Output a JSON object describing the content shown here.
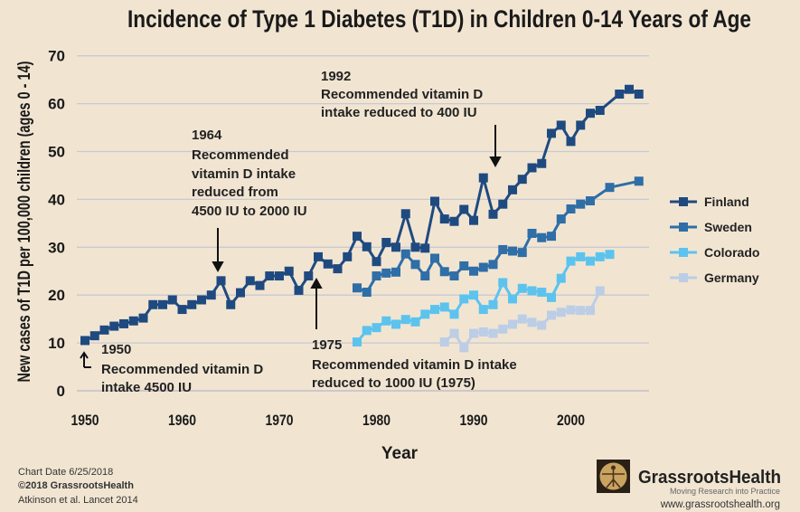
{
  "chart_data": {
    "type": "line",
    "title": "Incidence of Type 1 Diabetes (T1D) in Children 0-14 Years of Age",
    "xlabel": "Year",
    "ylabel": "New cases of T1D per 100,000 children (ages 0 - 14)",
    "xlim": [
      1949,
      2008
    ],
    "ylim": [
      0,
      70
    ],
    "x_ticks": [
      "1950",
      "1960",
      "1970",
      "1980",
      "1990",
      "2000"
    ],
    "y_ticks": [
      "0",
      "10",
      "20",
      "30",
      "40",
      "50",
      "60",
      "70"
    ],
    "grid": "horizontal",
    "legend_position": "right",
    "series": [
      {
        "name": "Finland",
        "color": "#1f4a80",
        "x": [
          1950,
          1951,
          1952,
          1953,
          1954,
          1955,
          1956,
          1957,
          1958,
          1959,
          1960,
          1961,
          1962,
          1963,
          1964,
          1965,
          1966,
          1967,
          1968,
          1969,
          1970,
          1971,
          1972,
          1973,
          1974,
          1975,
          1976,
          1977,
          1978,
          1979,
          1980,
          1981,
          1982,
          1983,
          1984,
          1985,
          1986,
          1987,
          1988,
          1989,
          1990,
          1991,
          1992,
          1993,
          1994,
          1995,
          1996,
          1997,
          1998,
          1999,
          2000,
          2001,
          2002,
          2003,
          2005,
          2006,
          2007
        ],
        "values": [
          10.5,
          11.5,
          12.7,
          13.5,
          14,
          14.6,
          15.2,
          18,
          18,
          19,
          17,
          18,
          19,
          20,
          23,
          18,
          20.5,
          23,
          22,
          24,
          24,
          25,
          21,
          24,
          28,
          26.5,
          25.5,
          28,
          32.3,
          30.1,
          27,
          31,
          30,
          37,
          30,
          29.8,
          39.6,
          35.9,
          35.4,
          37.9,
          35.6,
          44.5,
          36.9,
          39,
          42,
          44.2,
          46.6,
          47.5,
          53.8,
          55.5,
          52.1,
          55.5,
          58,
          58.6,
          62,
          63,
          62
        ]
      },
      {
        "name": "Sweden",
        "color": "#2f6ea6",
        "x": [
          1978,
          1979,
          1980,
          1981,
          1982,
          1983,
          1984,
          1985,
          1986,
          1987,
          1988,
          1989,
          1990,
          1991,
          1992,
          1993,
          1994,
          1995,
          1996,
          1997,
          1998,
          1999,
          2000,
          2001,
          2002,
          2004,
          2007
        ],
        "values": [
          21.5,
          20.6,
          24,
          24.6,
          24.8,
          28.6,
          26.4,
          24,
          27.7,
          24.9,
          24,
          26.1,
          25,
          25.8,
          26.4,
          29.5,
          29.2,
          28.9,
          32.9,
          32,
          32.3,
          35.9,
          38,
          39,
          39.7,
          42.5,
          43.8
        ]
      },
      {
        "name": "Colorado",
        "color": "#5cc3ee",
        "x": [
          1978,
          1979,
          1980,
          1981,
          1982,
          1983,
          1984,
          1985,
          1986,
          1987,
          1988,
          1989,
          1990,
          1991,
          1992,
          1993,
          1994,
          1995,
          1996,
          1997,
          1998,
          1999,
          2000,
          2001,
          2002,
          2003,
          2004
        ],
        "values": [
          10.2,
          12.6,
          13.2,
          14.6,
          13.9,
          14.9,
          14.4,
          16,
          17,
          17.5,
          16,
          19.2,
          20,
          17,
          18,
          22.6,
          19.2,
          21.4,
          20.9,
          20.6,
          19.5,
          23.5,
          27.1,
          28,
          27.1,
          28,
          28.5
        ]
      },
      {
        "name": "Germany",
        "color": "#bccde6",
        "x": [
          1987,
          1988,
          1989,
          1990,
          1991,
          1992,
          1993,
          1994,
          1995,
          1996,
          1997,
          1998,
          1999,
          2000,
          2001,
          2002,
          2003
        ],
        "values": [
          10.2,
          12,
          9,
          12,
          12.3,
          12,
          12.9,
          13.9,
          15,
          14.3,
          13.7,
          15.8,
          16.4,
          16.9,
          16.8,
          16.8,
          20.9
        ]
      }
    ],
    "annotations": [
      {
        "year": "1950",
        "lines": [
          "Recommended vitamin D",
          "intake 4500 IU"
        ]
      },
      {
        "year": "1964",
        "lines": [
          "Recommended",
          "vitamin D intake",
          "reduced from",
          "4500 IU to 2000 IU"
        ]
      },
      {
        "year": "1975",
        "lines": [
          "Recommended vitamin D intake",
          "reduced to 1000 IU (1975)"
        ]
      },
      {
        "year": "1992",
        "lines": [
          "Recommended vitamin D",
          "intake reduced to 400 IU"
        ]
      }
    ]
  },
  "footer": {
    "chart_date": "Chart Date 6/25/2018",
    "copyright": "©2018 GrassrootsHealth",
    "source": "Atkinson et al. Lancet 2014"
  },
  "logo": {
    "name": "GrassrootsHealth",
    "tagline": "Moving Research into Practice",
    "url": "www.grassrootshealth.org"
  },
  "colors": {
    "background": "#f1e5d2",
    "grid": "#c9c9d2"
  }
}
